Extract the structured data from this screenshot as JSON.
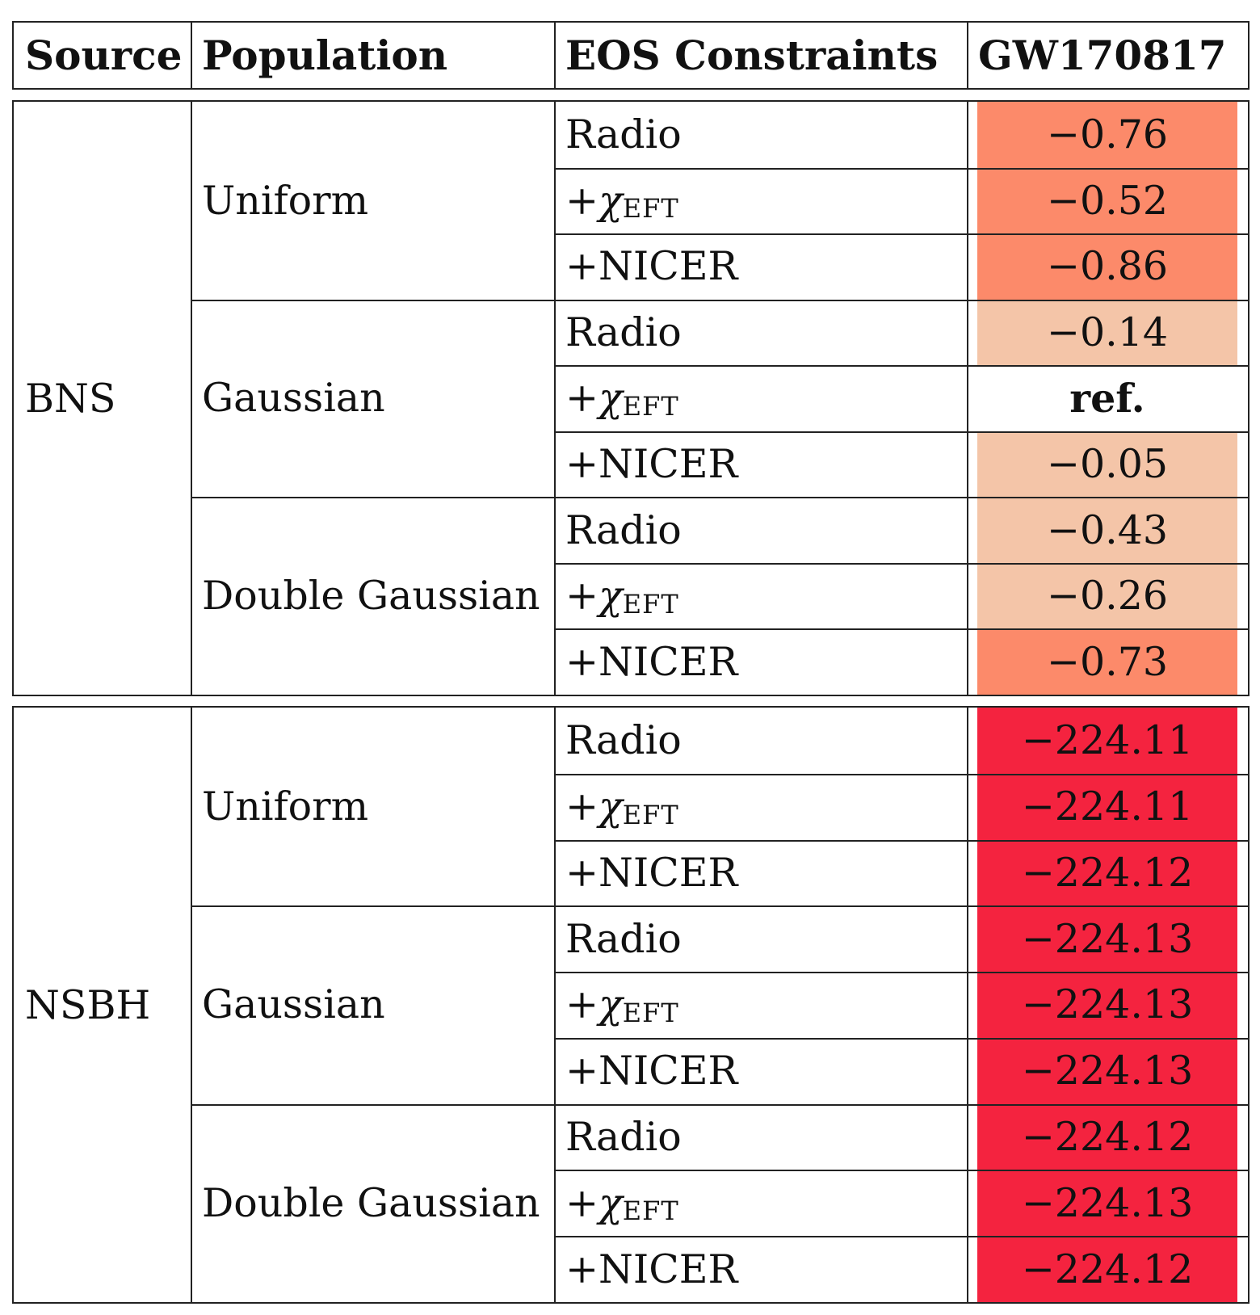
{
  "header": {
    "source": "Source",
    "population": "Population",
    "eos": "EOS Constraints",
    "event": "GW170817"
  },
  "sections": [
    {
      "source": "BNS",
      "groups": [
        {
          "population": "Uniform",
          "rows": [
            {
              "constraint": "Radio",
              "value": "−0.76",
              "color": "#fc8a6a"
            },
            {
              "constraint": "+χEFT",
              "value": "−0.52",
              "color": "#fc8a6a"
            },
            {
              "constraint": "+NICER",
              "value": "−0.86",
              "color": "#fc8a6a"
            }
          ]
        },
        {
          "population": "Gaussian",
          "rows": [
            {
              "constraint": "Radio",
              "value": "−0.14",
              "color": "#f4c5a8"
            },
            {
              "constraint": "+χEFT",
              "value": "ref.",
              "color": "#ffffff",
              "bold": true
            },
            {
              "constraint": "+NICER",
              "value": "−0.05",
              "color": "#f4c5a8"
            }
          ]
        },
        {
          "population": "Double Gaussian",
          "rows": [
            {
              "constraint": "Radio",
              "value": "−0.43",
              "color": "#f4c5a8"
            },
            {
              "constraint": "+χEFT",
              "value": "−0.26",
              "color": "#f4c5a8"
            },
            {
              "constraint": "+NICER",
              "value": "−0.73",
              "color": "#fc8a6a"
            }
          ]
        }
      ]
    },
    {
      "source": "NSBH",
      "groups": [
        {
          "population": "Uniform",
          "rows": [
            {
              "constraint": "Radio",
              "value": "−224.11",
              "color": "#f4233f"
            },
            {
              "constraint": "+χEFT",
              "value": "−224.11",
              "color": "#f4233f"
            },
            {
              "constraint": "+NICER",
              "value": "−224.12",
              "color": "#f4233f"
            }
          ]
        },
        {
          "population": "Gaussian",
          "rows": [
            {
              "constraint": "Radio",
              "value": "−224.13",
              "color": "#f4233f"
            },
            {
              "constraint": "+χEFT",
              "value": "−224.13",
              "color": "#f4233f"
            },
            {
              "constraint": "+NICER",
              "value": "−224.13",
              "color": "#f4233f"
            }
          ]
        },
        {
          "population": "Double Gaussian",
          "rows": [
            {
              "constraint": "Radio",
              "value": "−224.12",
              "color": "#f4233f"
            },
            {
              "constraint": "+χEFT",
              "value": "−224.13",
              "color": "#f4233f"
            },
            {
              "constraint": "+NICER",
              "value": "−224.12",
              "color": "#f4233f"
            }
          ]
        }
      ]
    }
  ]
}
